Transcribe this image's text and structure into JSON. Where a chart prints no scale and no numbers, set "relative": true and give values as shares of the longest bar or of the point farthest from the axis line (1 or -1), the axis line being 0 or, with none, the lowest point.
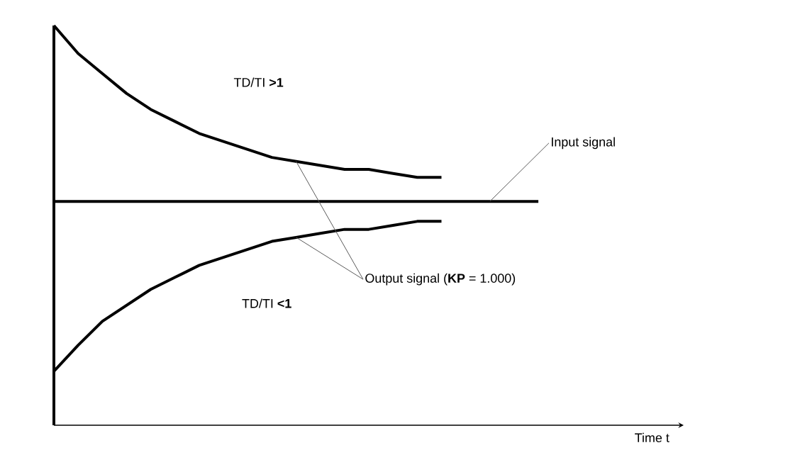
{
  "chart_data": {
    "type": "line",
    "relative": true,
    "categories": [
      null,
      null,
      null,
      null,
      null,
      null,
      null,
      null,
      null,
      null,
      null,
      null,
      null,
      null,
      null,
      null,
      null,
      null,
      null,
      null,
      null
    ],
    "series": [
      {
        "color": "#000000",
        "values": [
          1.0,
          0.93,
          0.88,
          0.83,
          0.79,
          0.76,
          0.73,
          0.71,
          0.69,
          0.67,
          0.66,
          0.65,
          0.64,
          0.64,
          0.63,
          0.62,
          0.62,
          null,
          null,
          null,
          null
        ]
      },
      {
        "color": "#000000",
        "values": [
          0.56,
          0.56,
          0.56,
          0.56,
          0.56,
          0.56,
          0.56,
          0.56,
          0.56,
          0.56,
          0.56,
          0.56,
          0.56,
          0.56,
          0.56,
          0.56,
          0.56,
          0.56,
          0.56,
          0.56,
          0.56
        ]
      },
      {
        "color": "#000000",
        "values": [
          0.135,
          0.2,
          0.26,
          0.3,
          0.34,
          0.37,
          0.4,
          0.42,
          0.44,
          0.46,
          0.47,
          0.48,
          0.49,
          0.49,
          0.5,
          0.51,
          0.51,
          null,
          null,
          null,
          null
        ]
      }
    ],
    "annotations": [
      "TD/TI **>1**",
      "Input signal",
      "Output signal (**KP** = 1.000)",
      "TD/TI **<1**",
      "Time t"
    ]
  }
}
